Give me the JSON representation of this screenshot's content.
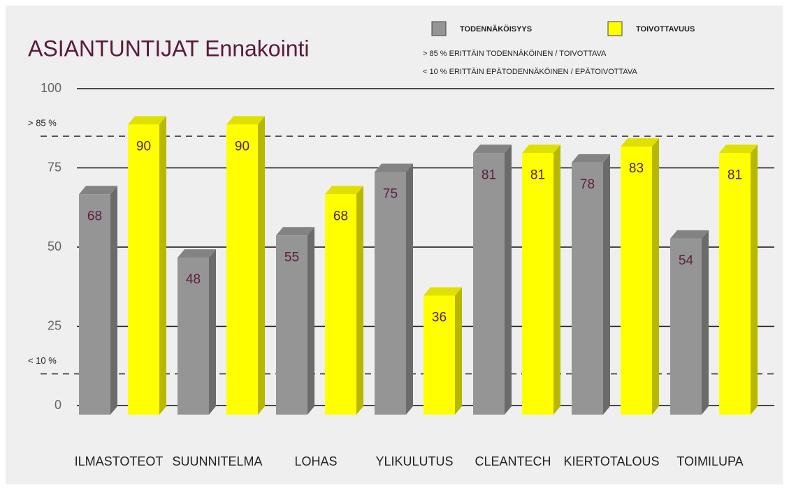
{
  "chart_data": {
    "type": "bar",
    "title": "ASIANTUNTIJAT Ennakointi",
    "notes": [
      "> 85 % ERITTÄIN TODENNÄKÖINEN / TOIVOTTAVA",
      "< 10 % ERITTÄIN EPÄTODENNÄKÖINEN / EPÄTOIVOTTAVA"
    ],
    "categories": [
      "ILMASTOTEOT",
      "SUUNNITELMA",
      "LOHAS",
      "YLIKULUTUS",
      "CLEANTECH",
      "KIERTOTALOUS",
      "TOIMILUPA"
    ],
    "series": [
      {
        "name": "TODENNÄKÖISYYS",
        "color": "#959595",
        "values": [
          68,
          48,
          55,
          75,
          81,
          78,
          54
        ]
      },
      {
        "name": "TOIVOTTAVUUS",
        "color": "#ffff00",
        "values": [
          90,
          90,
          68,
          36,
          81,
          83,
          81
        ]
      }
    ],
    "ylim": [
      0,
      100
    ],
    "yticks": [
      0,
      25,
      50,
      75,
      100
    ],
    "grid": true,
    "reference_lines": [
      {
        "value": 85,
        "label": "> 85 %"
      },
      {
        "value": 10,
        "label": "< 10 %"
      }
    ]
  }
}
